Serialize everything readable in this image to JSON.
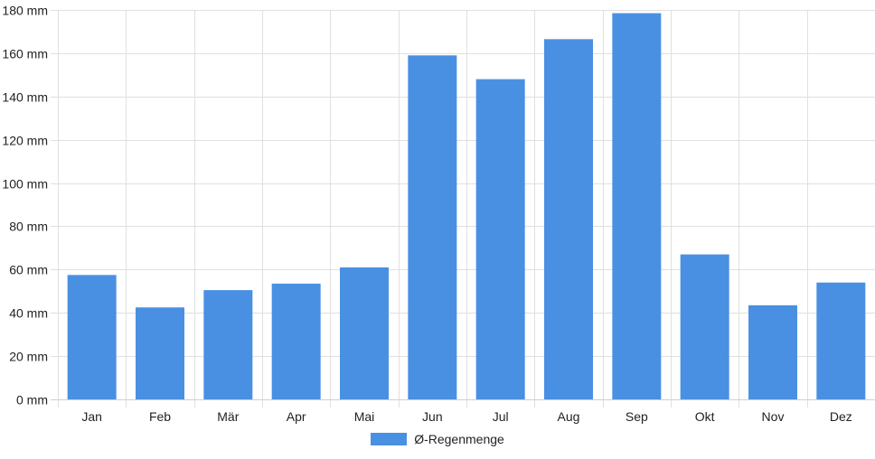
{
  "chart_data": {
    "type": "bar",
    "categories": [
      "Jan",
      "Feb",
      "Mär",
      "Apr",
      "Mai",
      "Jun",
      "Jul",
      "Aug",
      "Sep",
      "Okt",
      "Nov",
      "Dez"
    ],
    "series": [
      {
        "name": "Ø-Regenmenge",
        "values": [
          57.5,
          42.5,
          50.5,
          53.5,
          61,
          159,
          148,
          166.5,
          178.5,
          67,
          43.5,
          54
        ]
      }
    ],
    "ylim": [
      0,
      180
    ],
    "yticks": [
      0,
      20,
      40,
      60,
      80,
      100,
      120,
      140,
      160,
      180
    ],
    "y_tick_suffix": " mm",
    "grid": true,
    "legend_position": "bottom",
    "bar_color": "#4a90e2",
    "grid_color": "#e0e0e0"
  }
}
